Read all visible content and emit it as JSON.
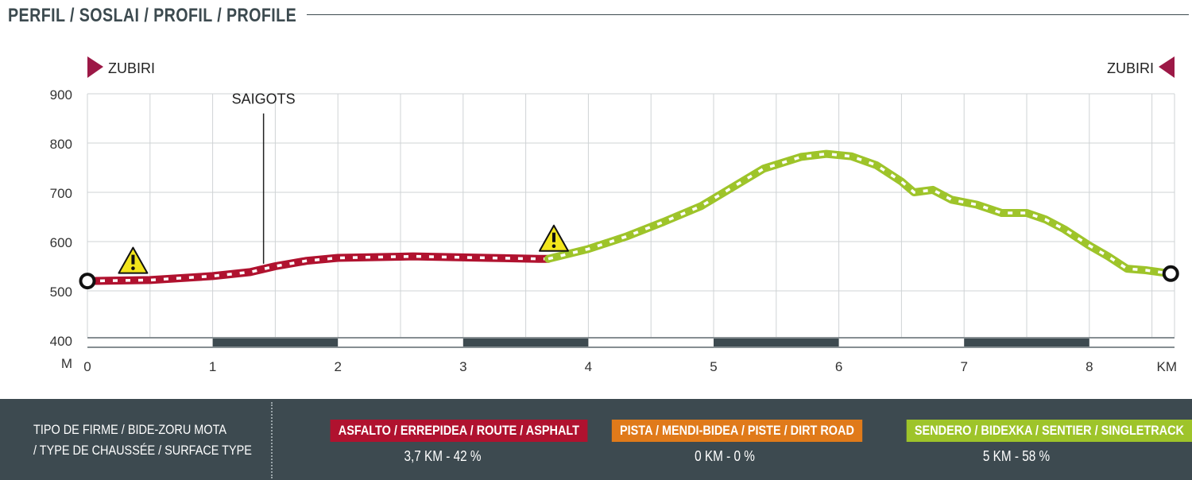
{
  "header": {
    "title": "PERFIL / SOSLAI / PROFIL / PROFILE"
  },
  "chart_data": {
    "type": "area",
    "title": "PERFIL / SOSLAI / PROFIL / PROFILE",
    "xlabel": "KM",
    "ylabel": "M",
    "xlim": [
      0,
      8.7
    ],
    "ylim": [
      400,
      900
    ],
    "xticks": [
      0,
      1,
      2,
      3,
      4,
      5,
      6,
      7,
      8
    ],
    "yticks": [
      400,
      500,
      600,
      700,
      800,
      900
    ],
    "grid": true,
    "start_label": "ZUBIRI",
    "end_label": "ZUBIRI",
    "series": [
      {
        "color": "#b0122f",
        "x": [
          0,
          0.5,
          1.0,
          1.3,
          1.5,
          1.75,
          2.0,
          2.6,
          3.2,
          3.6,
          3.68
        ],
        "y": [
          520,
          522,
          530,
          538,
          550,
          561,
          567,
          570,
          567,
          565,
          565
        ]
      },
      {
        "color": "#9ec42a",
        "x": [
          3.68,
          4.0,
          4.3,
          4.6,
          4.9,
          5.15,
          5.4,
          5.7,
          5.9,
          6.1,
          6.3,
          6.5,
          6.6,
          6.75,
          6.9,
          7.1,
          7.3,
          7.5,
          7.65,
          7.8,
          8.0,
          8.15,
          8.3,
          8.45,
          8.65
        ],
        "y": [
          565,
          585,
          610,
          640,
          672,
          710,
          748,
          772,
          778,
          773,
          755,
          722,
          700,
          705,
          685,
          675,
          658,
          658,
          645,
          625,
          592,
          570,
          545,
          542,
          535
        ]
      }
    ],
    "annotations": [
      {
        "type": "label",
        "text": "SAIGOTS",
        "x": 1.4
      },
      {
        "type": "warning",
        "x": 0.32,
        "y": 520
      },
      {
        "type": "warning",
        "x": 3.68,
        "y": 565
      }
    ],
    "km_bands": [
      [
        1,
        2
      ],
      [
        3,
        4
      ],
      [
        5,
        6
      ],
      [
        7,
        8
      ]
    ]
  },
  "footer": {
    "surface_label": [
      "TIPO DE FIRME / BIDE-ZORU MOTA",
      "/ TYPE DE CHAUSSÉE / SURFACE TYPE"
    ],
    "types": [
      {
        "label": "ASFALTO / ERREPIDEA / ROUTE / ASPHALT",
        "value": "3,7 KM - 42 %",
        "color": "#b0122f"
      },
      {
        "label": "PISTA / MENDI-BIDEA / PISTE / DIRT ROAD",
        "value": "0 KM - 0 %",
        "color": "#e07a1a"
      },
      {
        "label": "SENDERO  / BIDEXKA / SENTIER / SINGLETRACK",
        "value": "5 KM - 58 %",
        "color": "#9ec42a"
      }
    ]
  }
}
